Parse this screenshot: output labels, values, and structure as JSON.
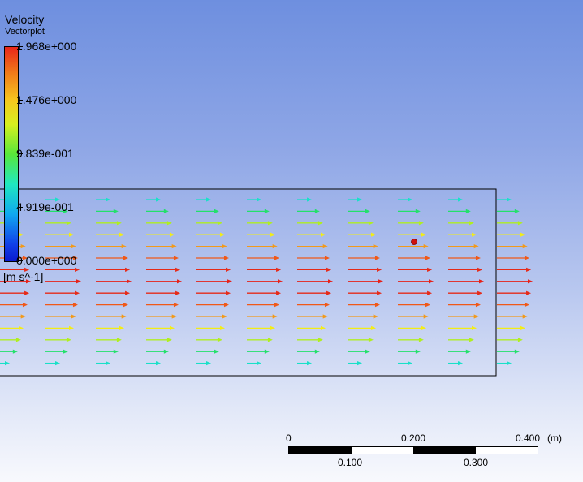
{
  "legend": {
    "title": "Velocity",
    "subtitle": "Vectorplot",
    "ticks": [
      "1.968e+000",
      "1.476e+000",
      "9.839e-001",
      "4.919e-001",
      "0.000e+000"
    ],
    "units": "[m s^-1]"
  },
  "plot": {
    "vector_colors_by_row": [
      "#19e0c8",
      "#22e06a",
      "#b0ee20",
      "#f2ec16",
      "#f29a1a",
      "#f05818",
      "#e62a18",
      "#e62018",
      "#e62a18",
      "#f05818",
      "#f29a1a",
      "#f2ec16",
      "#b0ee20",
      "#22e06a",
      "#19e0c8"
    ],
    "marker_color": "#d01010"
  },
  "scale": {
    "labels_top": [
      "0",
      "0.200",
      "0.400"
    ],
    "unit": "(m)",
    "labels_bottom": [
      "0.100",
      "0.300"
    ]
  }
}
